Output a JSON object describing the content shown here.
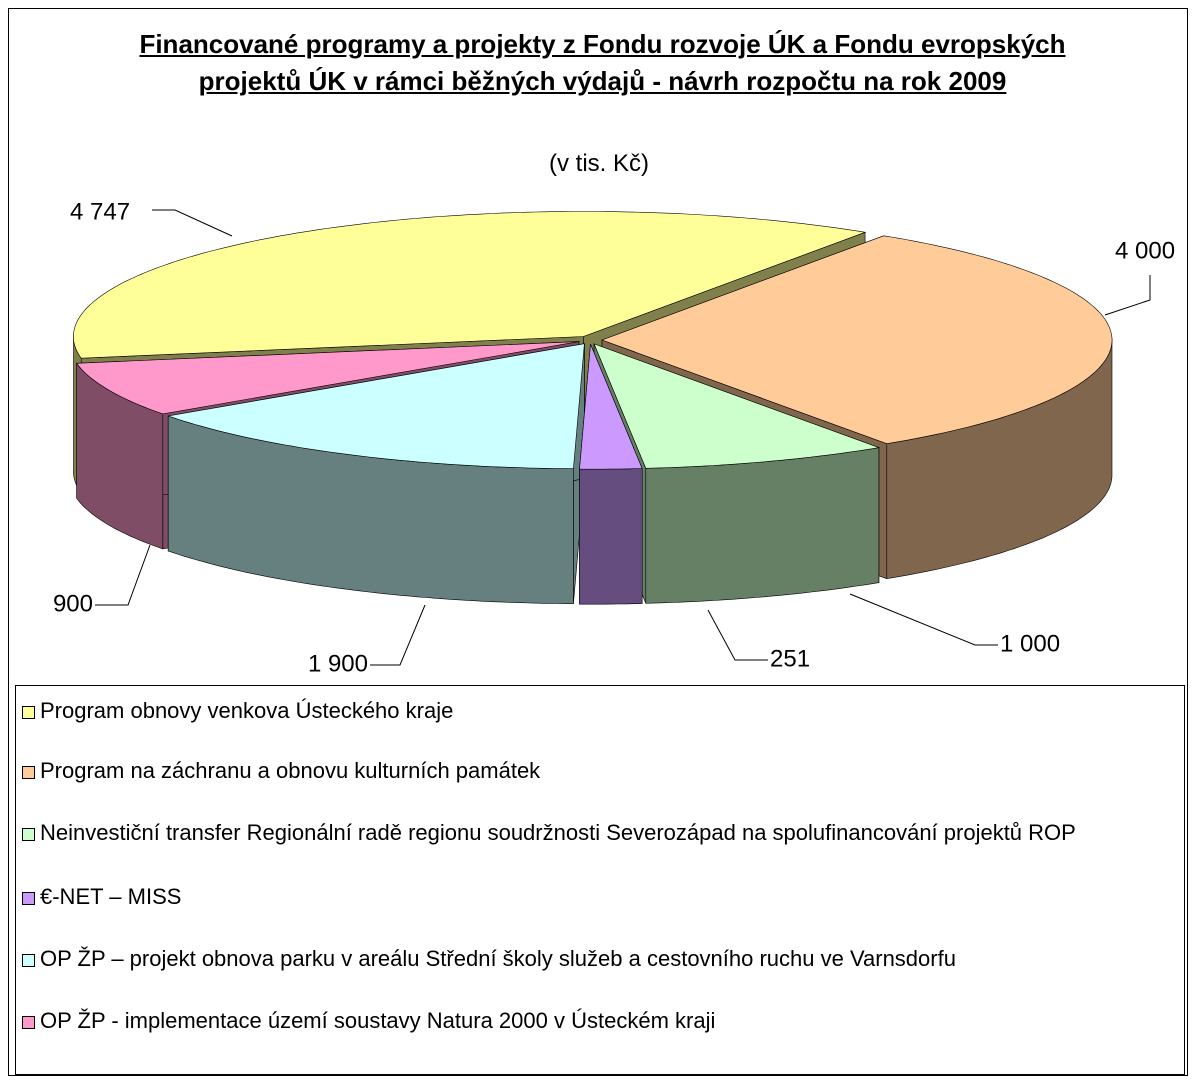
{
  "chart_data": {
    "type": "pie3d",
    "title": "Financované programy a projekty z Fondu rozvoje ÚK a Fondu evropských projektů ÚK v rámci běžných výdajů - návrh rozpočtu na rok 2009",
    "subtitle": "(v tis. Kč)",
    "categories": [
      "Program obnovy venkova Ústeckého kraje",
      "Program na záchranu a obnovu kulturních památek",
      "Neinvestiční transfer Regionální radě regionu soudržnosti Severozápad na spolufinancování projektů ROP",
      "€-NET – MISS",
      "OP ŽP – projekt obnova parku v areálu Střední školy služeb a cestovního ruchu ve Varnsdorfu",
      "OP ŽP - implementace území soustavy Natura 2000 v Ústeckém kraji"
    ],
    "values": [
      4747,
      4000,
      1000,
      251,
      1900,
      900
    ],
    "value_labels": [
      "4 747",
      "4 000",
      "1 000",
      "251",
      "1 900",
      "900"
    ],
    "colors": [
      "#ffff99",
      "#ffcc99",
      "#ccffcc",
      "#cc99ff",
      "#ccffff",
      "#ff99cc"
    ],
    "legend": "bottom"
  }
}
